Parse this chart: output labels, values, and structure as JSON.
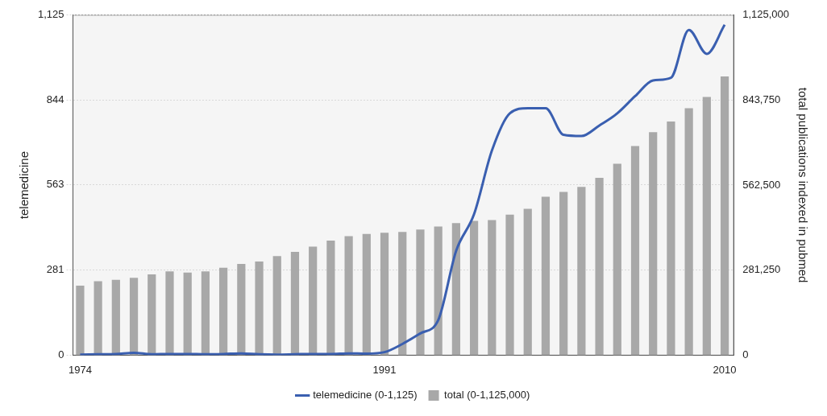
{
  "chart_data": {
    "type": "bar",
    "ylabel": "telemedicine",
    "y2label": "total publications indexed in pubmed",
    "x": [
      1974,
      1975,
      1976,
      1977,
      1978,
      1979,
      1980,
      1981,
      1982,
      1983,
      1984,
      1985,
      1986,
      1987,
      1988,
      1989,
      1990,
      1991,
      1992,
      1993,
      1994,
      1995,
      1996,
      1997,
      1998,
      1999,
      2000,
      2001,
      2002,
      2003,
      2004,
      2005,
      2006,
      2007,
      2008,
      2009,
      2010
    ],
    "xlim": [
      1973.6,
      2010.5
    ],
    "xticks": [
      1974,
      1991,
      2010
    ],
    "ylim": [
      0,
      1125
    ],
    "yticks": [
      0,
      281,
      563,
      844,
      {
        "value": 1125,
        "label": "1,125"
      }
    ],
    "y2lim": [
      0,
      1125000
    ],
    "y2ticks": [
      0,
      {
        "value": 281250,
        "label": "281,250"
      },
      {
        "value": 562500,
        "label": "562,500"
      },
      {
        "value": 843750,
        "label": "843,750"
      },
      {
        "value": 1125000,
        "label": "1,125,000"
      }
    ],
    "series": [
      {
        "name": "telemedicine (0-1,125)",
        "type": "line",
        "color": "#3a5fb0",
        "values": [
          2,
          3,
          4,
          8,
          3,
          4,
          4,
          3,
          4,
          6,
          3,
          2,
          3,
          4,
          4,
          6,
          5,
          10,
          37,
          72,
          116,
          345,
          466,
          677,
          800,
          817,
          817,
          729,
          725,
          760,
          800,
          857,
          909,
          918,
          1076,
          997,
          1093
        ]
      },
      {
        "name": "total (0-1,125,000)",
        "axis": "y2",
        "color": "#a8a8a8",
        "values": [
          230000,
          244500,
          249000,
          256000,
          267000,
          277000,
          273000,
          277000,
          289000,
          302000,
          310000,
          328000,
          342000,
          359000,
          379000,
          394000,
          401000,
          405000,
          408000,
          416000,
          426000,
          437000,
          444000,
          447000,
          465000,
          484000,
          524000,
          540000,
          557000,
          587000,
          633000,
          692000,
          738000,
          773000,
          817000,
          854000,
          922000
        ]
      }
    ],
    "grid": "y",
    "legend": "bottom",
    "marker": "none"
  }
}
